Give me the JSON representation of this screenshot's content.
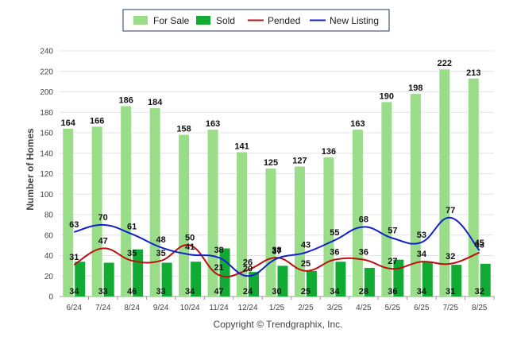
{
  "chart_data": {
    "type": "bar",
    "ylabel": "Number of Homes",
    "xlabel": "",
    "ylim": [
      0,
      240
    ],
    "yticks": [
      0,
      20,
      40,
      60,
      80,
      100,
      120,
      140,
      160,
      180,
      200,
      220,
      240
    ],
    "grid": true,
    "legend_position": "top-center",
    "categories": [
      "6/24",
      "7/24",
      "8/24",
      "9/24",
      "10/24",
      "11/24",
      "12/24",
      "1/25",
      "2/25",
      "3/25",
      "4/25",
      "5/25",
      "6/25",
      "7/25",
      "8/25"
    ],
    "series": [
      {
        "name": "For Sale",
        "kind": "bar",
        "color": "#99dd88",
        "values": [
          164,
          166,
          186,
          184,
          158,
          163,
          141,
          125,
          127,
          136,
          163,
          190,
          198,
          222,
          213
        ]
      },
      {
        "name": "Sold",
        "kind": "bar",
        "color": "#11aa33",
        "values": [
          34,
          33,
          46,
          33,
          34,
          47,
          24,
          30,
          25,
          34,
          28,
          36,
          34,
          31,
          32
        ]
      },
      {
        "name": "Pended",
        "kind": "line",
        "color": "#bb1111",
        "values": [
          31,
          47,
          35,
          35,
          50,
          21,
          26,
          38,
          25,
          36,
          36,
          27,
          34,
          32,
          43
        ]
      },
      {
        "name": "New Listing",
        "kind": "line",
        "color": "#1122cc",
        "values": [
          63,
          70,
          61,
          48,
          41,
          38,
          20,
          37,
          43,
          55,
          68,
          57,
          53,
          77,
          45
        ]
      }
    ],
    "credit": "Copyright © Trendgraphix, Inc."
  }
}
